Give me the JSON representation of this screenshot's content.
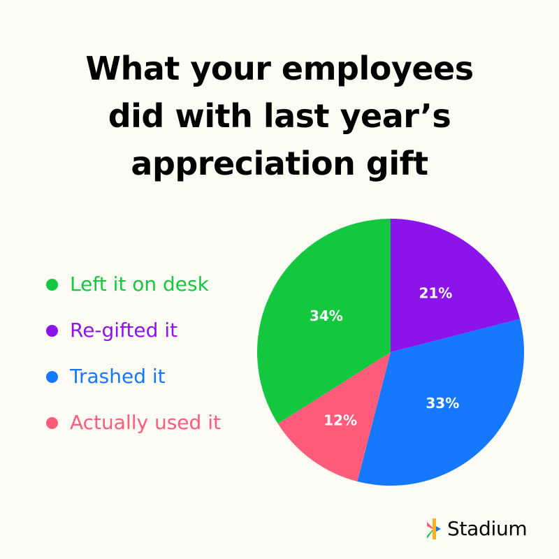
{
  "chart_data": {
    "type": "pie",
    "title_lines": [
      "What your employees",
      "did with last year’s",
      "appreciation gift"
    ],
    "categories": [
      "Left it on desk",
      "Re-gifted it",
      "Trashed it",
      "Actually used it"
    ],
    "values": [
      34,
      21,
      33,
      12
    ],
    "labels": [
      "34%",
      "21%",
      "33%",
      "12%"
    ],
    "colors": [
      "#13C73F",
      "#8C14EA",
      "#1677FF",
      "#FF5C7C"
    ],
    "slice_order": [
      1,
      2,
      3,
      0
    ],
    "start_angle_deg": 0,
    "legend_placement": "left"
  },
  "brand": {
    "name": "Stadium",
    "logo_colors": [
      "#FF5C7C",
      "#FFB11B",
      "#13C73F",
      "#1677FF"
    ]
  }
}
